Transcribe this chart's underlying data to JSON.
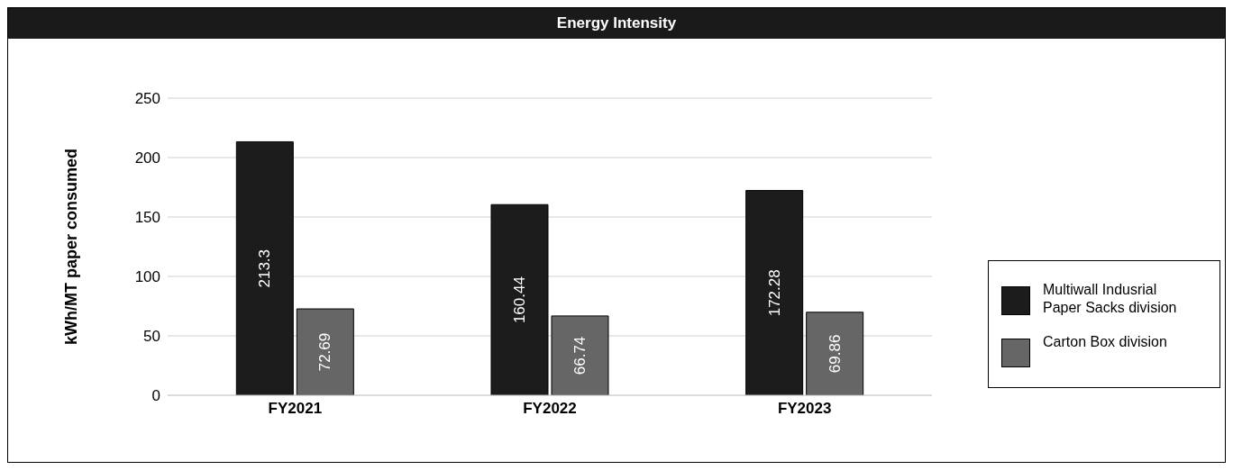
{
  "chart_data": {
    "type": "bar",
    "title": "Energy Intensity",
    "ylabel": "kWh/MT paper consumed",
    "categories": [
      "FY2021",
      "FY2022",
      "FY2023"
    ],
    "series": [
      {
        "name": "Multiwall Indusrial Paper Sacks division",
        "color": "#1c1c1c",
        "values": [
          213.3,
          160.44,
          172.28
        ]
      },
      {
        "name": "Carton Box division",
        "color": "#666666",
        "values": [
          72.69,
          66.74,
          69.86
        ]
      }
    ],
    "ylim": [
      0,
      250
    ],
    "yticks": [
      0,
      50,
      100,
      150,
      200,
      250
    ],
    "grid": "y",
    "legend": "right",
    "data_labels": true
  }
}
